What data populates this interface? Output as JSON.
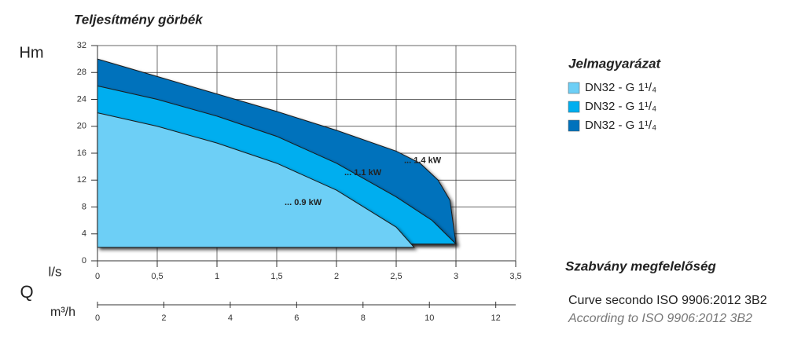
{
  "chart_data": {
    "type": "area",
    "title": "Teljesítmény görbék",
    "y_label": "Hm",
    "x_label": "l/s",
    "q_label": "Q",
    "x2_label": "m³/h",
    "legend_title": "Jelmagyarázat",
    "standard_title": "Szabvány megfelelőség",
    "standard_lines": [
      "Curve secondo ISO 9906:2012 3B2",
      "According to ISO 9906:2012 3B2"
    ],
    "xlim": [
      0,
      3.5
    ],
    "xticks": [
      0,
      {
        "value": 0.5,
        "label": "0,5"
      },
      1,
      {
        "value": 1.5,
        "label": "1,5"
      },
      2,
      {
        "value": 2.5,
        "label": "2,5"
      },
      3,
      {
        "value": 3.5,
        "label": "3,5"
      }
    ],
    "ylim": [
      0,
      32
    ],
    "yticks": [
      0,
      4,
      8,
      12,
      16,
      20,
      24,
      28,
      32
    ],
    "x2lim": [
      0,
      12.6
    ],
    "x2ticks": [
      0,
      2,
      4,
      6,
      8,
      10,
      12
    ],
    "grid": true,
    "series": [
      {
        "name": "DN32 - G 1¹/₄",
        "label": "... 1.4 kW",
        "color": "#0072bc",
        "x": [
          0,
          0.5,
          1,
          1.5,
          2,
          2.5,
          2.7,
          2.85,
          2.95,
          3
        ],
        "values": [
          30,
          27.4,
          24.8,
          22.2,
          19.4,
          16.3,
          14.5,
          12,
          9,
          2.5
        ]
      },
      {
        "name": "DN32 - G 1¹/₄",
        "label": "... 1.1 kW",
        "color": "#00aeef",
        "x": [
          0,
          0.5,
          1,
          1.5,
          2,
          2.5,
          2.8,
          3
        ],
        "values": [
          26,
          24,
          21.5,
          18.5,
          14.5,
          9.5,
          6,
          2.5
        ]
      },
      {
        "name": "DN32 - G 1¹/₄",
        "label": "... 0.9 kW",
        "color": "#6dcff6",
        "x": [
          0,
          0.5,
          1,
          1.5,
          2,
          2.5,
          2.65
        ],
        "values": [
          22,
          20,
          17.5,
          14.5,
          10.5,
          5,
          2
        ]
      }
    ]
  }
}
